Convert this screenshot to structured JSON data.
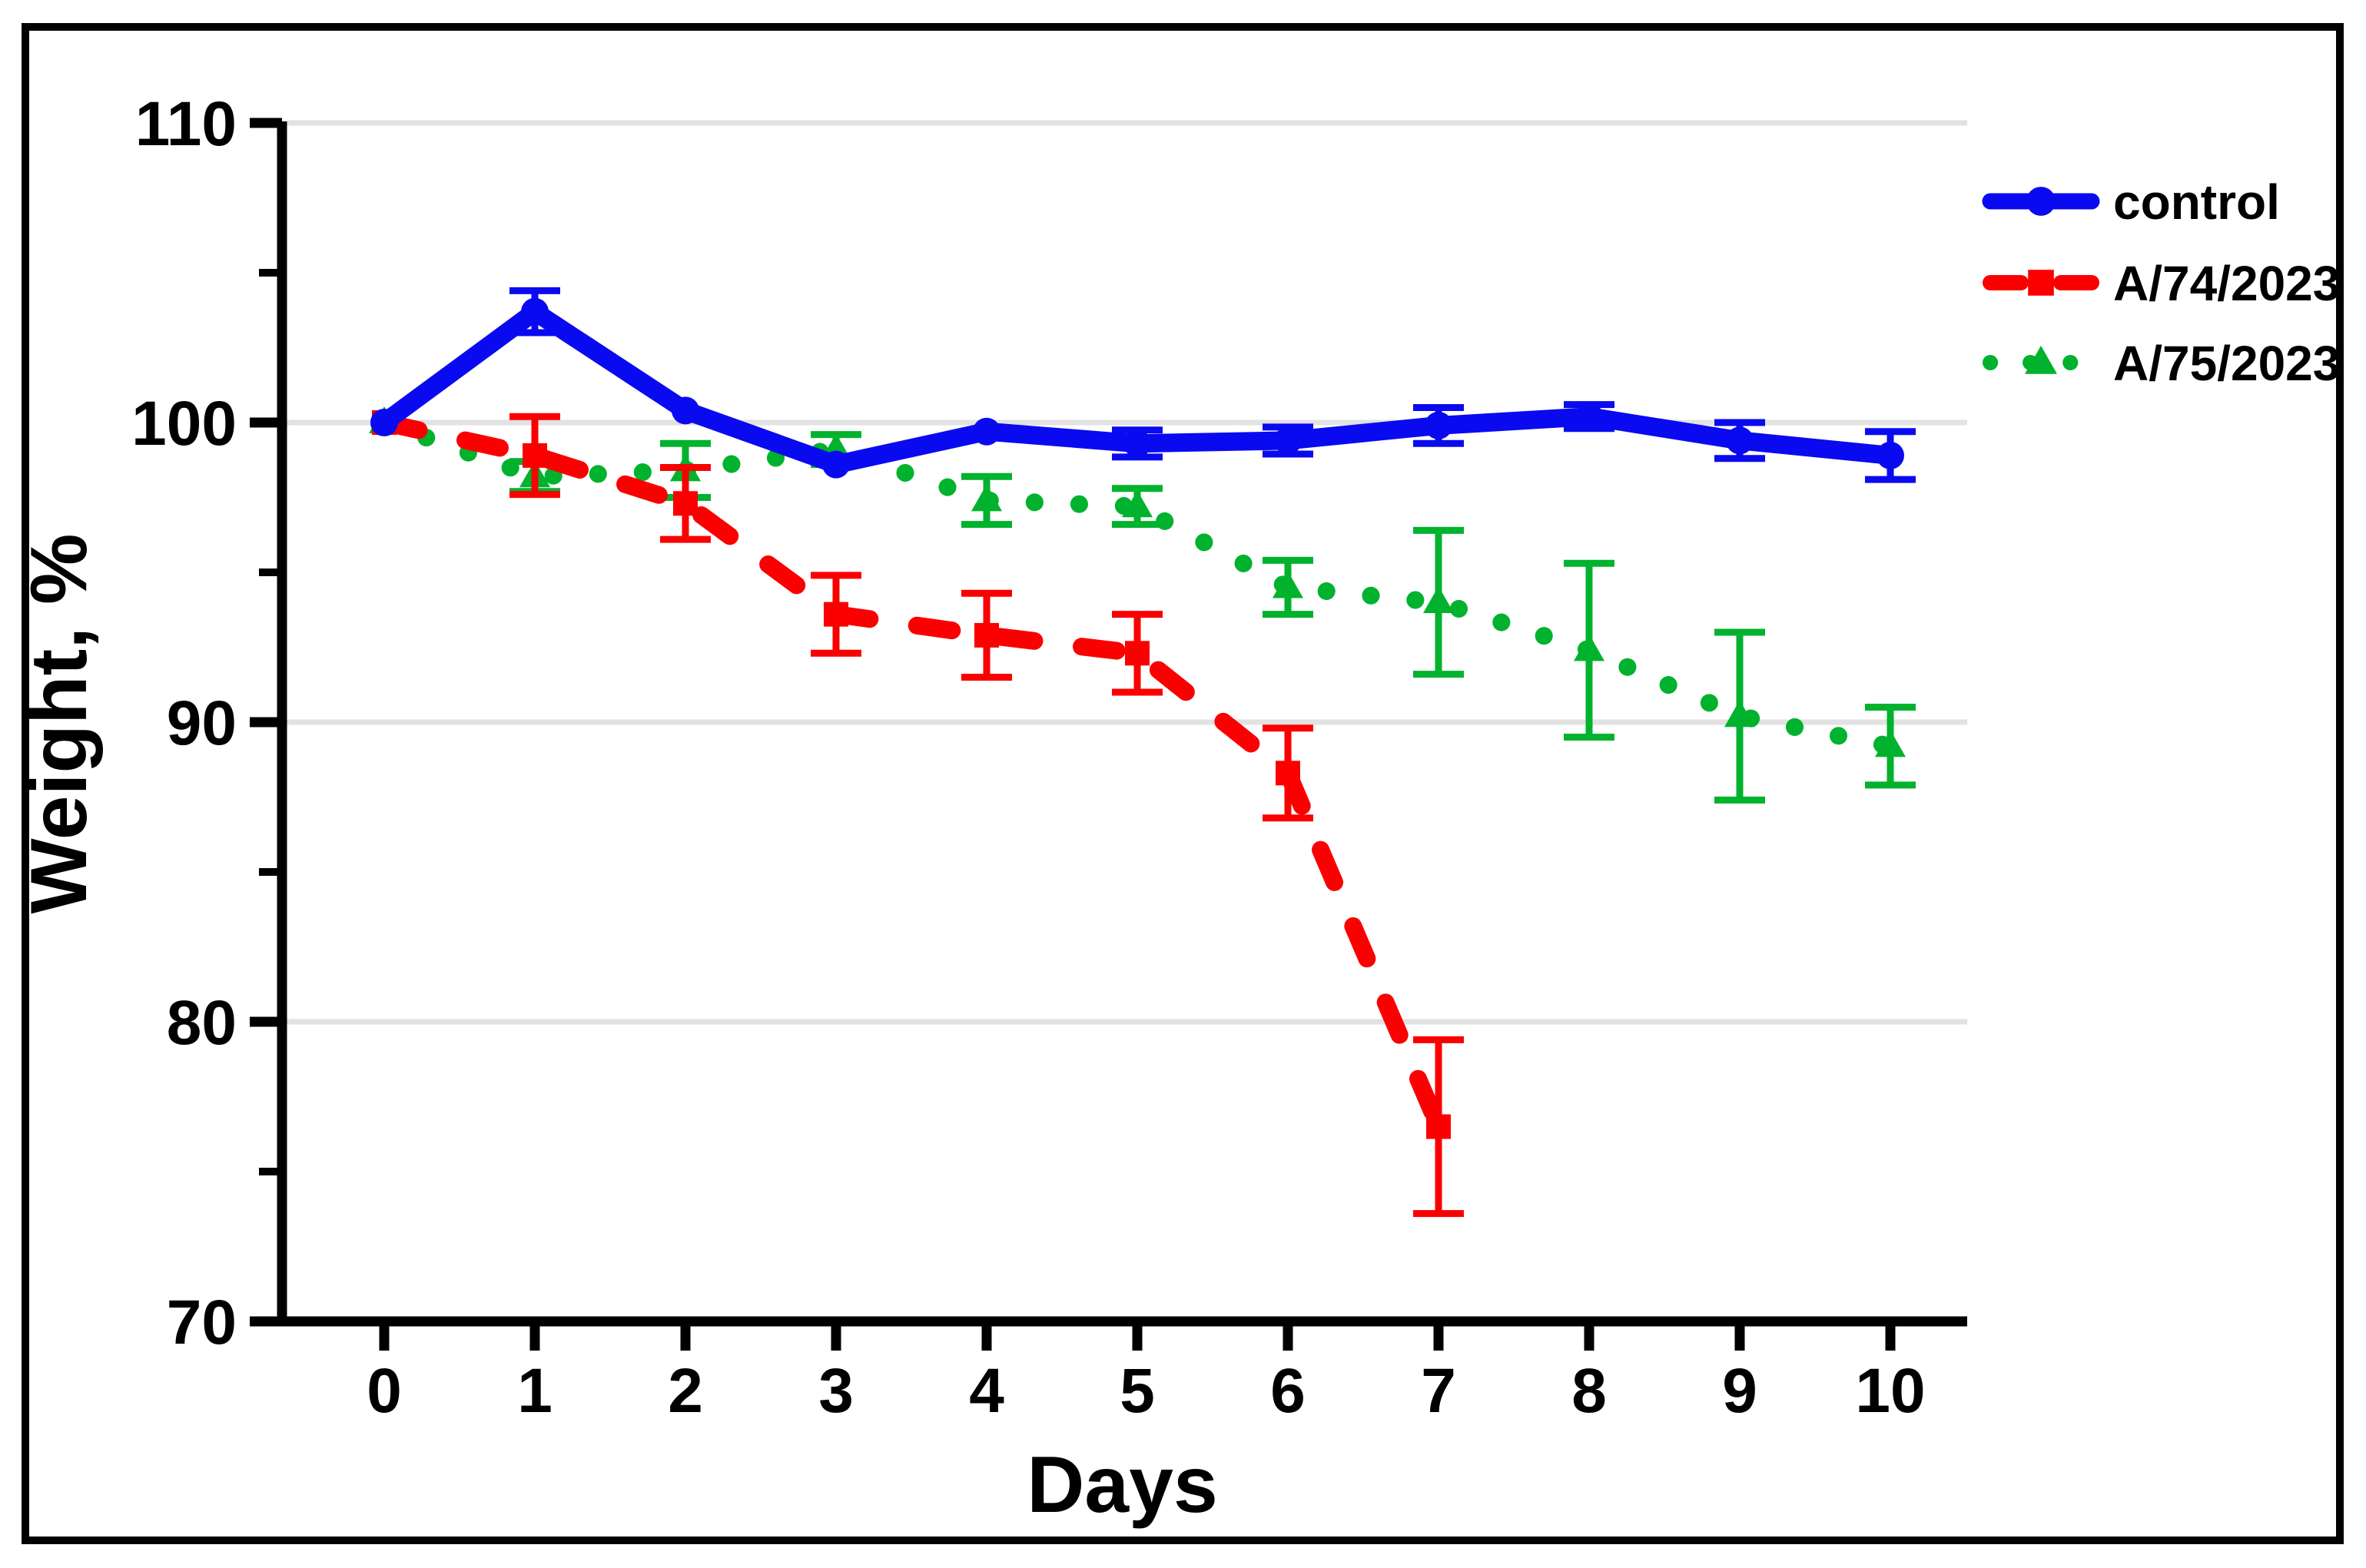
{
  "figure": {
    "background": "#ffffff",
    "border_color": "#000000",
    "border_width": 10
  },
  "chart_data": {
    "type": "line",
    "title": "",
    "xlabel": "Days",
    "ylabel": "Weight, %",
    "x": [
      0,
      1,
      2,
      3,
      4,
      5,
      6,
      7,
      8,
      9,
      10
    ],
    "xticks": [
      0,
      1,
      2,
      3,
      4,
      5,
      6,
      7,
      8,
      9,
      10
    ],
    "xlim": [
      -0.7,
      10.5
    ],
    "ylim": [
      70,
      110
    ],
    "yticks": [
      70,
      80,
      90,
      100,
      110
    ],
    "yticks_minor": [
      75,
      85,
      95,
      105
    ],
    "gridlines_y": [
      80,
      90,
      100,
      110
    ],
    "grid_color": "#e2e2e2",
    "grid_on": true,
    "legend_position": "top-right",
    "legend_order": [
      "control",
      "A/74/2023",
      "A/75/2023"
    ],
    "series": [
      {
        "name": "A/75/2023",
        "color": "#00b22d",
        "marker": "triangle",
        "line_style": "dotted",
        "x": [
          0,
          1,
          2,
          3,
          4,
          5,
          6,
          7,
          8,
          9,
          10
        ],
        "values": [
          100.0,
          98.2,
          98.4,
          99.1,
          97.4,
          97.2,
          94.5,
          94.0,
          92.4,
          90.2,
          89.2
        ],
        "errors": [
          0,
          0.5,
          0.9,
          0.5,
          0.8,
          0.6,
          0.9,
          2.4,
          2.9,
          2.8,
          1.3
        ]
      },
      {
        "name": "A/74/2023",
        "color": "#fa0000",
        "marker": "square",
        "line_style": "dashed",
        "x": [
          0,
          1,
          2,
          3,
          4,
          5,
          6,
          7
        ],
        "values": [
          100.0,
          98.9,
          97.3,
          93.6,
          92.9,
          92.3,
          88.3,
          76.5
        ],
        "errors": [
          0,
          1.3,
          1.2,
          1.3,
          1.4,
          1.3,
          1.5,
          2.9
        ]
      },
      {
        "name": "control",
        "color": "#0a0af0",
        "marker": "circle",
        "line_style": "solid",
        "x": [
          0,
          1,
          2,
          3,
          4,
          5,
          6,
          7,
          8,
          9,
          10
        ],
        "values": [
          100.0,
          103.7,
          100.4,
          98.6,
          99.7,
          99.3,
          99.4,
          99.9,
          100.2,
          99.4,
          98.9
        ],
        "errors": [
          0,
          0.7,
          0.2,
          0.2,
          0.2,
          0.45,
          0.45,
          0.6,
          0.4,
          0.6,
          0.8
        ]
      }
    ]
  }
}
